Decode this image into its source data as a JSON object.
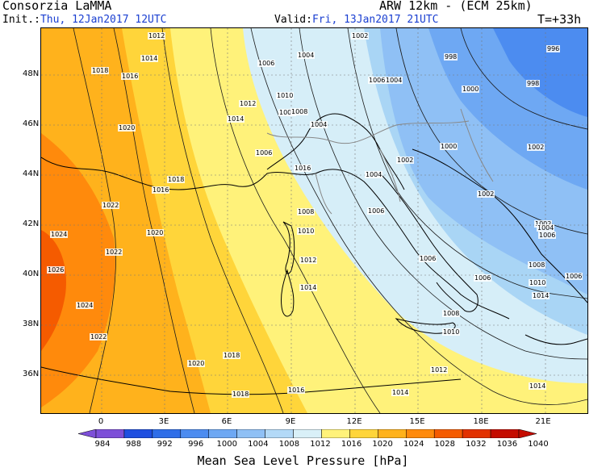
{
  "header": {
    "institution": "Consorzia LaMMA",
    "model": "ARW 12km - (ECM 25km)",
    "init_prefix": "Init.:",
    "init_value": "Thu, 12Jan2017 12UTC",
    "valid_prefix": "Valid:",
    "valid_value": "Fri, 13Jan2017 21UTC",
    "lead_time": "T=+33h"
  },
  "map": {
    "lat_labels": [
      "48N",
      "46N",
      "44N",
      "42N",
      "40N",
      "38N",
      "36N"
    ],
    "lon_labels": [
      "0",
      "3E",
      "6E",
      "9E",
      "12E",
      "15E",
      "18E",
      "21E"
    ],
    "isobar_labels": [
      {
        "text": "1012"
      },
      {
        "text": "1014"
      },
      {
        "text": "1018"
      },
      {
        "text": "1016"
      },
      {
        "text": "1020"
      },
      {
        "text": "1018"
      },
      {
        "text": "1016"
      },
      {
        "text": "1022"
      },
      {
        "text": "1024"
      },
      {
        "text": "1020"
      },
      {
        "text": "1022"
      },
      {
        "text": "1026"
      },
      {
        "text": "1024"
      },
      {
        "text": "1002"
      },
      {
        "text": "1004"
      },
      {
        "text": "1006"
      },
      {
        "text": "998"
      },
      {
        "text": "996"
      },
      {
        "text": "1006"
      },
      {
        "text": "1004"
      },
      {
        "text": "998"
      },
      {
        "text": "1000"
      },
      {
        "text": "1010"
      },
      {
        "text": "1012"
      },
      {
        "text": "1014"
      },
      {
        "text": "1006"
      },
      {
        "text": "1008"
      },
      {
        "text": "1004"
      },
      {
        "text": "1006"
      },
      {
        "text": "1016"
      },
      {
        "text": "1004"
      },
      {
        "text": "1002"
      },
      {
        "text": "1000"
      },
      {
        "text": "1002"
      },
      {
        "text": "1002"
      },
      {
        "text": "1008"
      },
      {
        "text": "1006"
      },
      {
        "text": "1010"
      },
      {
        "text": "1012"
      },
      {
        "text": "1014"
      },
      {
        "text": "1006"
      },
      {
        "text": "1006"
      },
      {
        "text": "1002"
      },
      {
        "text": "1004"
      },
      {
        "text": "1006"
      },
      {
        "text": "1008"
      },
      {
        "text": "1010"
      },
      {
        "text": "1008"
      },
      {
        "text": "1010"
      },
      {
        "text": "1012"
      },
      {
        "text": "1014"
      },
      {
        "text": "1018"
      },
      {
        "text": "1020"
      },
      {
        "text": "1018"
      },
      {
        "text": "1016"
      },
      {
        "text": "1014"
      },
      {
        "text": "1022"
      },
      {
        "text": "1014"
      },
      {
        "text": "1006"
      }
    ]
  },
  "colorbar": {
    "title": "Mean Sea Level Pressure [hPa]",
    "labels": [
      "984",
      "988",
      "992",
      "996",
      "1000",
      "1004",
      "1008",
      "1012",
      "1016",
      "1020",
      "1024",
      "1028",
      "1032",
      "1036",
      "1040"
    ],
    "colors": [
      "#7d4fd8",
      "#1f4fe0",
      "#2f6ee8",
      "#4c8cf0",
      "#6ea8f3",
      "#8fc0f5",
      "#b3d9f7",
      "#d9f0f8",
      "#fff27a",
      "#ffd53a",
      "#ffb21c",
      "#ff8a0c",
      "#f55b00",
      "#e23100",
      "#c40c00"
    ]
  }
}
